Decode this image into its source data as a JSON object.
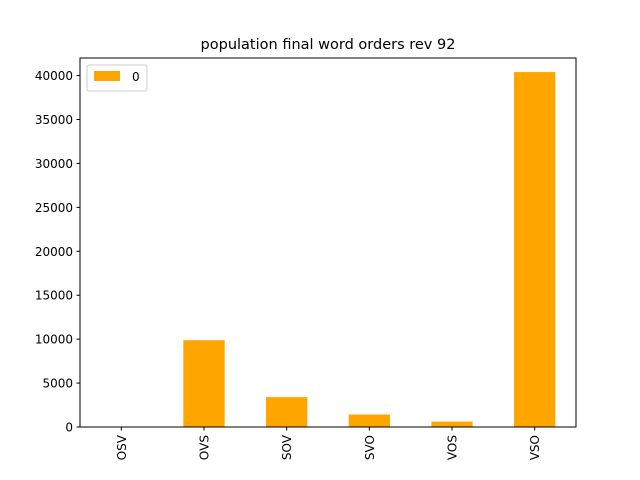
{
  "chart_data": {
    "type": "bar",
    "title": "population final word orders rev 92",
    "xlabel": "",
    "ylabel": "",
    "categories": [
      "OSV",
      "OVS",
      "SOV",
      "SVO",
      "VOS",
      "VSO"
    ],
    "series": [
      {
        "name": "0",
        "values": [
          0,
          9880,
          3400,
          1420,
          620,
          40400
        ]
      }
    ],
    "ylim": [
      0,
      42000
    ],
    "yticks": [
      0,
      5000,
      10000,
      15000,
      20000,
      25000,
      30000,
      35000,
      40000
    ],
    "ytick_labels": [
      "0",
      "5000",
      "10000",
      "15000",
      "20000",
      "25000",
      "30000",
      "35000",
      "40000"
    ],
    "bar_color": "#ffa500",
    "grid": false,
    "legend_position": "top-left",
    "x_tick_rotation": "vertical"
  }
}
